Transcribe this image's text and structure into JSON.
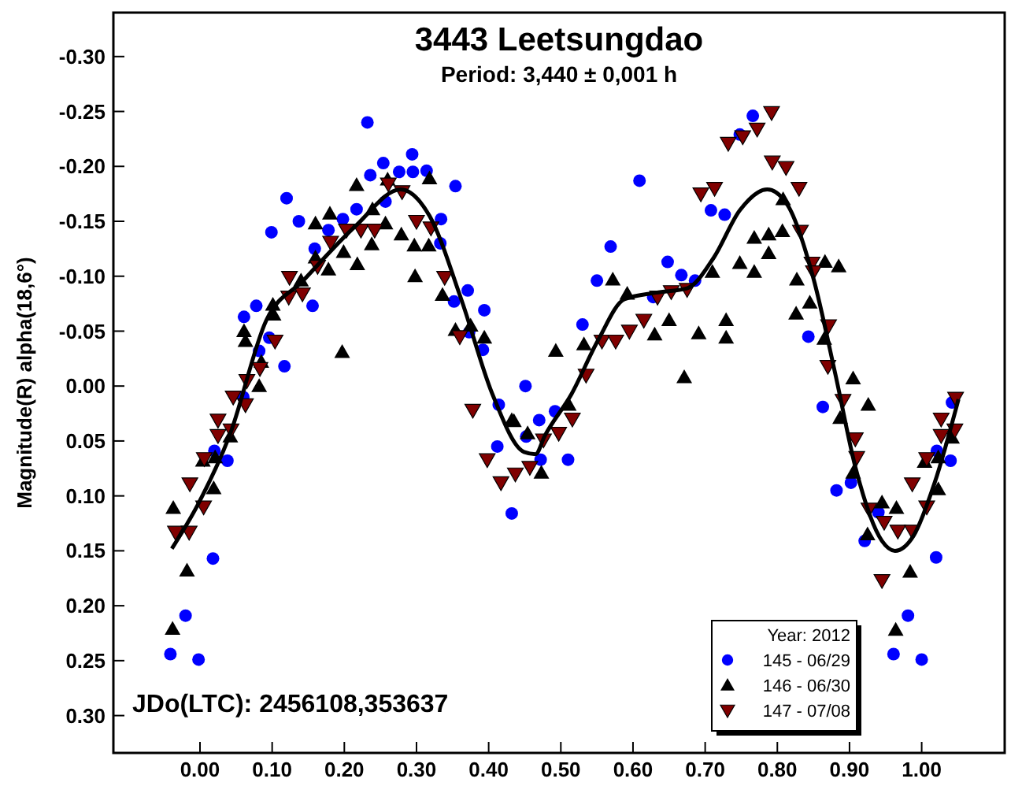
{
  "chart_data": {
    "type": "scatter",
    "title": "3443 Leetsungdao",
    "subtitle": "Period: 3,440 ± 0,001 h",
    "ylabel": "Magnitude(R) alpha(18,6°)",
    "legend_title": "Year: 2012",
    "annotations": [
      "JDo(LTC): 2456108,353637"
    ],
    "xlim": [
      -0.12,
      1.115
    ],
    "ylim": [
      0.334,
      -0.34
    ],
    "xticks": [
      {
        "value": 0,
        "label": "0.00"
      },
      {
        "value": 0.1,
        "label": "0.10"
      },
      {
        "value": 0.2,
        "label": "0.20"
      },
      {
        "value": 0.3,
        "label": "0.30"
      },
      {
        "value": 0.4,
        "label": "0.40"
      },
      {
        "value": 0.5,
        "label": "0.50"
      },
      {
        "value": 0.6,
        "label": "0.60"
      },
      {
        "value": 0.7,
        "label": "0.70"
      },
      {
        "value": 0.8,
        "label": "0.80"
      },
      {
        "value": 0.9,
        "label": "0.90"
      },
      {
        "value": 1,
        "label": "1.00"
      }
    ],
    "yticks": [
      {
        "value": -0.3,
        "label": "-0.30"
      },
      {
        "value": -0.25,
        "label": "-0.25"
      },
      {
        "value": -0.2,
        "label": "-0.20"
      },
      {
        "value": -0.15,
        "label": "-0.15"
      },
      {
        "value": -0.1,
        "label": "-0.10"
      },
      {
        "value": -0.05,
        "label": "-0.05"
      },
      {
        "value": 0,
        "label": "0.00"
      },
      {
        "value": 0.05,
        "label": "0.05"
      },
      {
        "value": 0.1,
        "label": "0.10"
      },
      {
        "value": 0.15,
        "label": "0.15"
      },
      {
        "value": 0.2,
        "label": "0.20"
      },
      {
        "value": 0.25,
        "label": "0.25"
      },
      {
        "value": 0.3,
        "label": "0.30"
      }
    ],
    "grid": false,
    "legend": "bottom right",
    "series": [
      {
        "name": "145 - 06/29",
        "color": "#0000ff",
        "marker": "circle",
        "x": [
          0.12,
          0.099,
          0.137,
          0.061,
          0.078,
          0.096,
          0.082,
          0.117,
          0.06,
          0.02,
          0.038,
          0.159,
          0.156,
          0.178,
          0.198,
          0.217,
          0.232,
          0.236,
          0.254,
          0.276,
          0.257,
          0.294,
          0.295,
          0.314,
          0.354,
          0.334,
          0.333,
          0.352,
          0.371,
          0.394,
          0.373,
          0.392,
          0.414,
          0.412,
          0.451,
          0.47,
          0.452,
          -0.041,
          -0.02,
          -0.002,
          0.018,
          0.432,
          0.492,
          0.609,
          0.569,
          0.55,
          0.53,
          0.648,
          0.667,
          0.686,
          0.708,
          0.727,
          0.748,
          0.766,
          0.843,
          0.863,
          0.51,
          0.472,
          0.628,
          0.882,
          0.902,
          0.921,
          0.94,
          0.981,
          0.961,
          1.0,
          1.02,
          1.021,
          1.04,
          1.042
        ],
        "values": [
          -0.171,
          -0.14,
          -0.15,
          -0.063,
          -0.073,
          -0.044,
          -0.032,
          -0.018,
          0.01,
          0.059,
          0.068,
          -0.125,
          -0.073,
          -0.142,
          -0.152,
          -0.161,
          -0.24,
          -0.192,
          -0.203,
          -0.195,
          -0.168,
          -0.211,
          -0.195,
          -0.196,
          -0.182,
          -0.152,
          -0.13,
          -0.077,
          -0.087,
          -0.069,
          -0.049,
          -0.033,
          0.017,
          0.055,
          0.0,
          0.031,
          0.046,
          0.244,
          0.209,
          0.249,
          0.157,
          0.116,
          0.023,
          -0.187,
          -0.127,
          -0.096,
          -0.056,
          -0.113,
          -0.101,
          -0.096,
          -0.16,
          -0.156,
          -0.229,
          -0.246,
          -0.045,
          0.019,
          0.067,
          0.067,
          -0.081,
          0.095,
          0.088,
          0.141,
          0.115,
          0.209,
          0.244,
          0.249,
          0.156,
          0.059,
          0.068,
          0.015
        ]
      },
      {
        "name": "146 - 06/30",
        "color": "#000000",
        "marker": "triangle",
        "x": [
          0.004,
          0.021,
          0.042,
          0.061,
          0.063,
          0.082,
          0.085,
          0.101,
          0.102,
          0.14,
          0.16,
          0.178,
          0.16,
          0.18,
          0.197,
          0.199,
          0.218,
          0.217,
          0.238,
          0.239,
          0.257,
          0.26,
          0.279,
          0.297,
          0.298,
          0.317,
          0.318,
          0.336,
          0.354,
          0.375,
          0.394,
          0.432,
          0.454,
          -0.037,
          -0.018,
          -0.038,
          0.019,
          0.435,
          0.473,
          0.493,
          0.511,
          0.532,
          0.572,
          0.592,
          0.63,
          0.65,
          0.671,
          0.691,
          0.71,
          0.729,
          0.729,
          0.748,
          0.768,
          0.768,
          0.788,
          0.788,
          0.807,
          0.808,
          0.827,
          0.826,
          0.845,
          0.866,
          0.885,
          0.865,
          0.887,
          0.905,
          0.926,
          0.905,
          0.945,
          0.965,
          0.925,
          0.984,
          0.964,
          1.023,
          1.004,
          1.023,
          1.042
        ],
        "values": [
          0.068,
          0.065,
          0.046,
          -0.05,
          -0.041,
          0.0,
          -0.022,
          -0.074,
          -0.065,
          -0.096,
          -0.117,
          -0.106,
          -0.148,
          -0.157,
          -0.031,
          -0.122,
          -0.111,
          -0.183,
          -0.129,
          -0.161,
          -0.148,
          -0.188,
          -0.138,
          -0.128,
          -0.1,
          -0.128,
          -0.189,
          -0.083,
          -0.051,
          -0.055,
          -0.044,
          0.031,
          0.043,
          0.111,
          0.168,
          0.221,
          0.093,
          0.032,
          0.079,
          -0.032,
          0.017,
          -0.038,
          -0.097,
          -0.084,
          -0.047,
          -0.06,
          -0.008,
          -0.048,
          -0.104,
          -0.06,
          -0.044,
          -0.112,
          -0.135,
          -0.104,
          -0.138,
          -0.121,
          -0.141,
          -0.17,
          -0.097,
          -0.066,
          -0.076,
          -0.113,
          -0.109,
          -0.043,
          0.029,
          -0.007,
          0.017,
          0.079,
          0.106,
          0.111,
          0.135,
          0.169,
          0.222,
          0.094,
          0.069,
          0.065,
          0.047
        ]
      },
      {
        "name": "147 - 07/08",
        "color": "#800000",
        "marker": "triangle-down",
        "x": [
          -0.034,
          -0.015,
          -0.014,
          0.005,
          0.006,
          0.025,
          0.025,
          0.043,
          0.046,
          0.063,
          0.065,
          0.083,
          0.104,
          0.124,
          0.123,
          0.142,
          0.163,
          0.181,
          0.203,
          0.223,
          0.242,
          0.261,
          0.28,
          0.3,
          0.32,
          0.339,
          0.36,
          0.378,
          0.398,
          0.417,
          0.437,
          0.457,
          0.476,
          0.497,
          0.516,
          0.535,
          0.557,
          0.576,
          0.595,
          0.615,
          0.634,
          0.653,
          0.675,
          0.694,
          0.713,
          0.732,
          0.752,
          0.772,
          0.792,
          0.793,
          0.812,
          0.83,
          0.832,
          0.848,
          0.85,
          0.871,
          0.87,
          0.891,
          0.908,
          0.91,
          0.927,
          0.948,
          0.967,
          0.987,
          0.945,
          1.007,
          0.987,
          1.007,
          1.027,
          1.027,
          1.046,
          1.047
        ],
        "values": [
          0.133,
          0.133,
          0.089,
          0.11,
          0.066,
          0.031,
          0.045,
          0.04,
          0.01,
          0.017,
          -0.005,
          -0.016,
          -0.041,
          -0.099,
          -0.081,
          -0.084,
          -0.109,
          -0.131,
          -0.142,
          -0.142,
          -0.142,
          -0.184,
          -0.177,
          -0.15,
          -0.144,
          -0.099,
          -0.045,
          0.022,
          0.067,
          0.088,
          0.08,
          0.074,
          0.049,
          0.043,
          0.03,
          -0.01,
          -0.041,
          -0.041,
          -0.05,
          -0.06,
          -0.081,
          -0.086,
          -0.088,
          -0.175,
          -0.18,
          -0.221,
          -0.227,
          -0.234,
          -0.249,
          -0.204,
          -0.199,
          -0.18,
          -0.141,
          -0.112,
          -0.104,
          -0.055,
          -0.018,
          0.013,
          0.048,
          0.065,
          0.112,
          0.124,
          0.132,
          0.132,
          0.177,
          0.11,
          0.089,
          0.066,
          0.045,
          0.03,
          0.04,
          0.011
        ]
      },
      {
        "type": "line",
        "color": "#000000",
        "marker": "none",
        "x": [
          -0.039,
          -0.003,
          0.041,
          0.092,
          0.143,
          0.216,
          0.278,
          0.318,
          0.362,
          0.405,
          0.449,
          0.465,
          0.478,
          0.515,
          0.551,
          0.588,
          0.632,
          0.675,
          0.712,
          0.748,
          0.786,
          0.814,
          0.85,
          0.88,
          0.909,
          0.945,
          0.963,
          0.989,
          1.018,
          1.051
        ],
        "values": [
          0.148,
          0.108,
          0.045,
          -0.06,
          -0.096,
          -0.146,
          -0.179,
          -0.155,
          -0.079,
          0.007,
          0.06,
          0.062,
          0.045,
          0.007,
          -0.041,
          -0.079,
          -0.085,
          -0.089,
          -0.117,
          -0.16,
          -0.179,
          -0.165,
          -0.098,
          -0.012,
          0.076,
          0.141,
          0.15,
          0.136,
          0.088,
          0.012
        ]
      }
    ]
  }
}
